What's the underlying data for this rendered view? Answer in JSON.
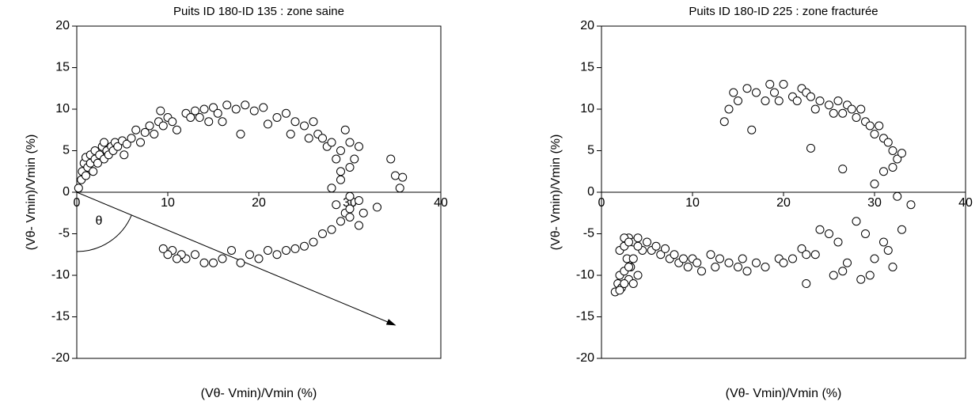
{
  "chart_data": [
    {
      "type": "scatter",
      "title": "Puits ID 180-ID 135 : zone saine",
      "x_label": "(Vθ- Vmin)/Vmin (%)",
      "y_label": "(Vθ- Vmin)/Vmin (%)",
      "annotation": "θ",
      "color": "#000000",
      "xlim": [
        0,
        40
      ],
      "xticks": [
        0,
        10,
        20,
        30,
        40
      ],
      "ylim": [
        -20,
        20
      ],
      "yticks": [
        -20,
        -15,
        -10,
        -5,
        0,
        5,
        10,
        15,
        20
      ],
      "x": [
        0.2,
        0.5,
        0.6,
        0.8,
        1.0,
        1.0,
        1.2,
        1.5,
        1.5,
        1.8,
        2.0,
        2.0,
        2.3,
        2.5,
        2.8,
        3.0,
        3.0,
        3.3,
        3.5,
        3.8,
        4.0,
        4.2,
        4.5,
        5.0,
        5.2,
        5.5,
        6.0,
        6.5,
        7.0,
        7.5,
        8.0,
        8.5,
        9.0,
        9.2,
        9.5,
        10.0,
        10.5,
        11.0,
        12.0,
        12.5,
        13.0,
        13.5,
        14.0,
        14.5,
        15.0,
        15.5,
        16.0,
        16.5,
        17.5,
        18.0,
        18.5,
        19.5,
        20.5,
        21.0,
        22.0,
        23.0,
        23.5,
        24.0,
        25.0,
        25.5,
        26.0,
        26.5,
        27.0,
        27.5,
        28.0,
        28.5,
        29.0,
        29.0,
        29.5,
        30.0,
        30.0,
        30.5,
        31.0,
        28.0,
        28.5,
        29.0,
        30.0,
        31.0,
        29.5,
        30.0,
        31.0,
        28.0,
        29.0,
        30.0,
        34.5,
        35.0,
        35.8,
        35.5,
        33.0,
        31.5,
        27.0,
        26.0,
        25.0,
        24.0,
        23.0,
        22.0,
        21.0,
        20.0,
        19.0,
        18.0,
        17.0,
        16.0,
        15.0,
        14.0,
        13.0,
        12.0,
        11.5,
        11.0,
        10.5,
        10.0,
        9.5
      ],
      "y": [
        0.5,
        1.5,
        2.5,
        3.5,
        4.2,
        2.0,
        3.0,
        3.5,
        4.5,
        2.5,
        4.0,
        5.0,
        3.5,
        4.5,
        5.5,
        4.0,
        6.0,
        5.0,
        4.5,
        5.5,
        5.0,
        6.0,
        5.5,
        6.2,
        4.5,
        5.8,
        6.5,
        7.5,
        6.0,
        7.2,
        8.0,
        7.0,
        8.5,
        9.8,
        8.0,
        9.0,
        8.5,
        7.5,
        9.5,
        9.0,
        9.8,
        9.0,
        10.0,
        8.5,
        10.2,
        9.5,
        8.5,
        10.5,
        10.0,
        7.0,
        10.5,
        9.8,
        10.2,
        8.2,
        9.0,
        9.5,
        7.0,
        8.5,
        8.0,
        6.5,
        8.5,
        7.0,
        6.5,
        5.5,
        6.0,
        4.0,
        5.0,
        2.5,
        7.5,
        6.0,
        3.0,
        4.0,
        5.5,
        0.5,
        -1.5,
        1.5,
        -0.5,
        -1.0,
        -2.5,
        -3.0,
        -4.0,
        -4.5,
        -3.5,
        -2.0,
        4.0,
        2.0,
        1.8,
        0.5,
        -1.8,
        -2.5,
        -5.0,
        -6.0,
        -6.5,
        -6.8,
        -7.0,
        -7.5,
        -7.0,
        -8.0,
        -7.5,
        -8.5,
        -7.0,
        -8.0,
        -8.5,
        -8.5,
        -7.5,
        -8.0,
        -7.5,
        -8.0,
        -7.0,
        -7.5,
        -6.8
      ]
    },
    {
      "type": "scatter",
      "title": "Puits ID 180-ID 225 : zone fracturée",
      "x_label": "(Vθ- Vmin)/Vmin (%)",
      "y_label": "(Vθ- Vmin)/Vmin (%)",
      "color": "#000000",
      "xlim": [
        0,
        40
      ],
      "xticks": [
        0,
        10,
        20,
        30,
        40
      ],
      "ylim": [
        -20,
        20
      ],
      "yticks": [
        -20,
        -15,
        -10,
        -5,
        0,
        5,
        10,
        15,
        20
      ],
      "x": [
        1.5,
        1.8,
        2.0,
        2.2,
        2.5,
        2.8,
        3.0,
        3.2,
        2.0,
        2.5,
        3.0,
        3.5,
        4.0,
        4.5,
        2.5,
        3.0,
        3.5,
        4.0,
        2.0,
        2.5,
        3.0,
        3.5,
        4.0,
        5.0,
        5.5,
        6.0,
        6.5,
        7.0,
        7.5,
        8.0,
        8.5,
        9.0,
        9.5,
        10.0,
        10.5,
        11.0,
        12.0,
        12.5,
        13.0,
        14.0,
        15.0,
        15.5,
        16.0,
        17.0,
        18.0,
        19.5,
        20.0,
        21.0,
        22.0,
        22.5,
        13.5,
        14.0,
        14.5,
        15.0,
        16.0,
        16.5,
        17.0,
        18.0,
        18.5,
        19.0,
        19.5,
        20.0,
        21.0,
        21.5,
        22.0,
        22.5,
        23.0,
        23.5,
        24.0,
        25.0,
        25.5,
        26.0,
        26.5,
        27.0,
        27.5,
        28.0,
        28.5,
        29.0,
        29.5,
        30.0,
        30.5,
        31.0,
        31.5,
        32.0,
        32.5,
        33.0,
        32.0,
        31.0,
        30.0,
        32.5,
        23.0,
        24.0,
        25.0,
        26.0,
        27.0,
        28.0,
        29.0,
        30.0,
        31.0,
        32.0,
        23.5,
        25.5,
        26.5,
        28.5,
        29.5,
        31.5,
        34.0,
        33.0,
        22.5,
        26.5
      ],
      "y": [
        -12.0,
        -11.0,
        -10.0,
        -11.5,
        -9.5,
        -8.0,
        -10.5,
        -9.0,
        -7.0,
        -6.5,
        -5.5,
        -6.0,
        -5.5,
        -7.0,
        -5.5,
        -6.0,
        -11.0,
        -10.0,
        -11.8,
        -11.0,
        -9.0,
        -8.0,
        -6.5,
        -6.0,
        -7.0,
        -6.5,
        -7.5,
        -6.8,
        -8.0,
        -7.5,
        -8.5,
        -8.0,
        -9.0,
        -8.0,
        -8.5,
        -9.5,
        -7.5,
        -9.0,
        -8.0,
        -8.5,
        -9.0,
        -8.0,
        -9.5,
        -8.5,
        -9.0,
        -8.0,
        -8.5,
        -8.0,
        -6.8,
        -7.5,
        8.5,
        10.0,
        12.0,
        11.0,
        12.5,
        7.5,
        12.0,
        11.0,
        13.0,
        12.0,
        11.0,
        13.0,
        11.5,
        11.0,
        12.5,
        12.0,
        11.5,
        10.0,
        11.0,
        10.5,
        9.5,
        11.0,
        9.5,
        10.5,
        10.0,
        9.0,
        10.0,
        8.5,
        8.0,
        7.0,
        8.0,
        6.5,
        6.0,
        5.0,
        4.0,
        4.7,
        3.0,
        2.5,
        1.0,
        -0.5,
        5.3,
        -4.5,
        -5.0,
        -6.0,
        -8.5,
        -3.5,
        -5.0,
        -8.0,
        -6.0,
        -9.0,
        -7.5,
        -10.0,
        -9.5,
        -10.5,
        -10.0,
        -7.0,
        -1.5,
        -4.5,
        -11.0,
        2.8
      ]
    }
  ]
}
